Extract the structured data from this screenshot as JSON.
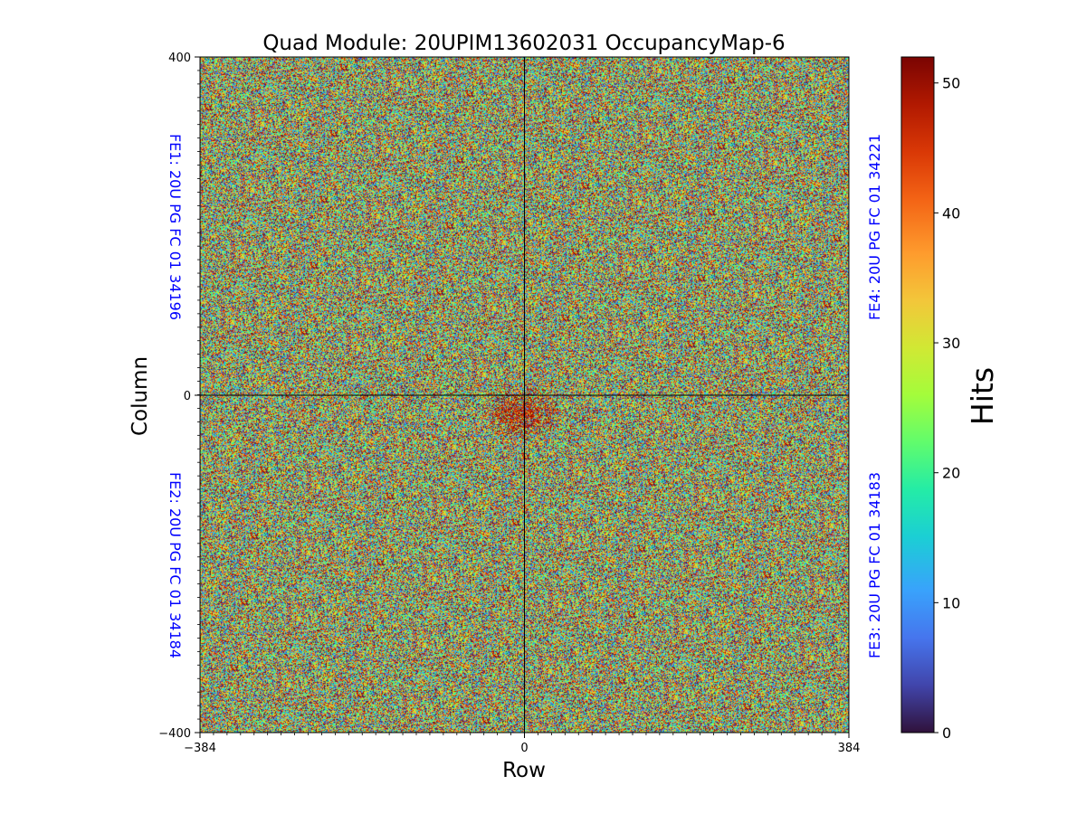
{
  "chart_data": {
    "type": "heatmap",
    "title": "Quad Module: 20UPIM13602031 OccupancyMap-6",
    "xlabel": "Row",
    "ylabel": "Column",
    "xlim": [
      -384,
      384
    ],
    "ylim": [
      -400,
      400
    ],
    "x_tick_labels": [
      "−384",
      "0",
      "384"
    ],
    "y_tick_labels": [
      "400",
      "0",
      "−400"
    ],
    "x_ticks": [
      -384,
      0,
      384
    ],
    "y_ticks": [
      400,
      0,
      -400
    ],
    "divider_lines": {
      "x": 0,
      "y": 0
    },
    "colorbar": {
      "label": "Hits",
      "range": [
        0,
        52
      ],
      "ticks": [
        0,
        10,
        20,
        30,
        40,
        50
      ],
      "tick_labels": [
        "0",
        "10",
        "20",
        "30",
        "40",
        "50"
      ],
      "colormap": "turbo"
    },
    "chip_labels": [
      {
        "id": "FE1",
        "text": "FE1: 20U PG FC 01 34196",
        "quadrant": "top-left"
      },
      {
        "id": "FE2",
        "text": "FE2: 20U PG FC 01 34184",
        "quadrant": "bottom-left"
      },
      {
        "id": "FE3",
        "text": "FE3: 20U PG FC 01 34183",
        "quadrant": "bottom-right"
      },
      {
        "id": "FE4",
        "text": "FE4: 20U PG FC 01 34221",
        "quadrant": "top-right"
      }
    ],
    "distribution": {
      "description": "approximately uniform random occupancy across all pixels",
      "hotspot_center": [
        -5,
        -20
      ],
      "hotspot_radius": 45
    }
  },
  "colors": {
    "chip_label": "#0000ff",
    "divider": "#000000",
    "text": "#000000"
  }
}
